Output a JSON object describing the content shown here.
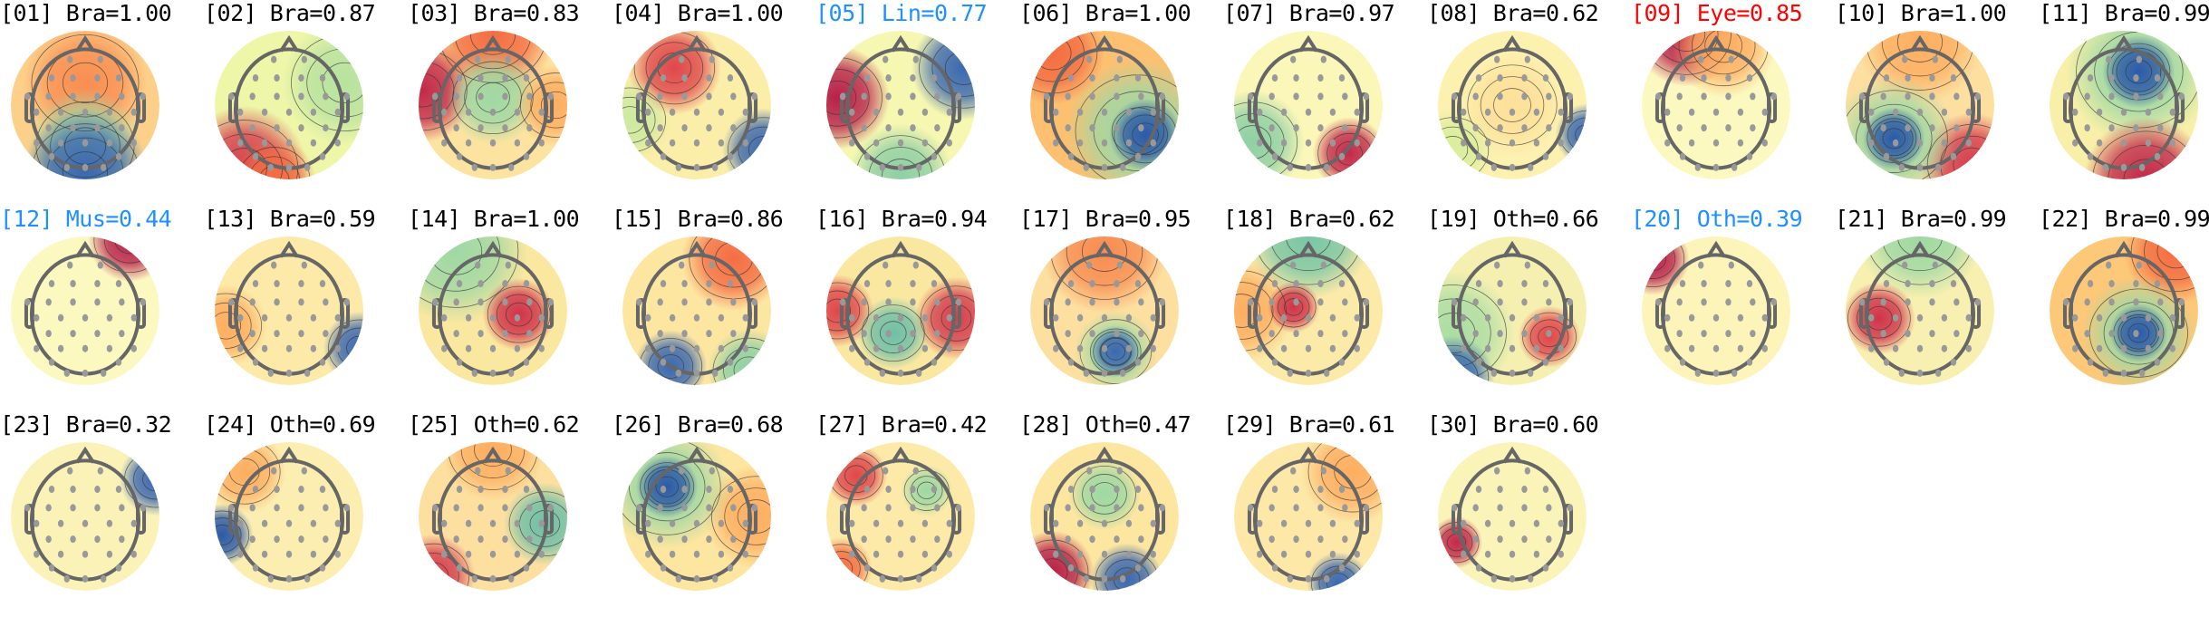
{
  "colors": {
    "brain": "#000000",
    "line_noise": "#1e90ff",
    "muscle": "#1e90ff",
    "other": "#000000",
    "other_flagged": "#1e90ff",
    "eye": "#ff0000"
  },
  "chart_data": {
    "type": "heatmap",
    "subtype": "scalp topographic maps (ICA components)",
    "colormap": "Spectral",
    "components": [
      {
        "label": "[01] Bra=1.00",
        "color": "#000000"
      },
      {
        "label": "[02] Bra=0.87",
        "color": "#000000"
      },
      {
        "label": "[03] Bra=0.83",
        "color": "#000000"
      },
      {
        "label": "[04] Bra=1.00",
        "color": "#000000"
      },
      {
        "label": "[05] Lin=0.77",
        "color": "#1e90ff"
      },
      {
        "label": "[06] Bra=1.00",
        "color": "#000000"
      },
      {
        "label": "[07] Bra=0.97",
        "color": "#000000"
      },
      {
        "label": "[08] Bra=0.62",
        "color": "#000000"
      },
      {
        "label": "[09] Eye=0.85",
        "color": "#ff0000"
      },
      {
        "label": "[10] Bra=1.00",
        "color": "#000000"
      },
      {
        "label": "[11] Bra=0.99",
        "color": "#000000"
      },
      {
        "label": "[12] Mus=0.44",
        "color": "#1e90ff"
      },
      {
        "label": "[13] Bra=0.59",
        "color": "#000000"
      },
      {
        "label": "[14] Bra=1.00",
        "color": "#000000"
      },
      {
        "label": "[15] Bra=0.86",
        "color": "#000000"
      },
      {
        "label": "[16] Bra=0.94",
        "color": "#000000"
      },
      {
        "label": "[17] Bra=0.95",
        "color": "#000000"
      },
      {
        "label": "[18] Bra=0.62",
        "color": "#000000"
      },
      {
        "label": "[19] Oth=0.66",
        "color": "#000000"
      },
      {
        "label": "[20] Oth=0.39",
        "color": "#1e90ff"
      },
      {
        "label": "[21] Bra=0.99",
        "color": "#000000"
      },
      {
        "label": "[22] Bra=0.99",
        "color": "#000000"
      },
      {
        "label": "[23] Bra=0.32",
        "color": "#000000"
      },
      {
        "label": "[24] Oth=0.69",
        "color": "#000000"
      },
      {
        "label": "[25] Oth=0.62",
        "color": "#000000"
      },
      {
        "label": "[26] Bra=0.68",
        "color": "#000000"
      },
      {
        "label": "[27] Bra=0.42",
        "color": "#000000"
      },
      {
        "label": "[28] Oth=0.47",
        "color": "#000000"
      },
      {
        "label": "[29] Bra=0.61",
        "color": "#000000"
      },
      {
        "label": "[30] Bra=0.60",
        "color": "#000000"
      }
    ]
  }
}
